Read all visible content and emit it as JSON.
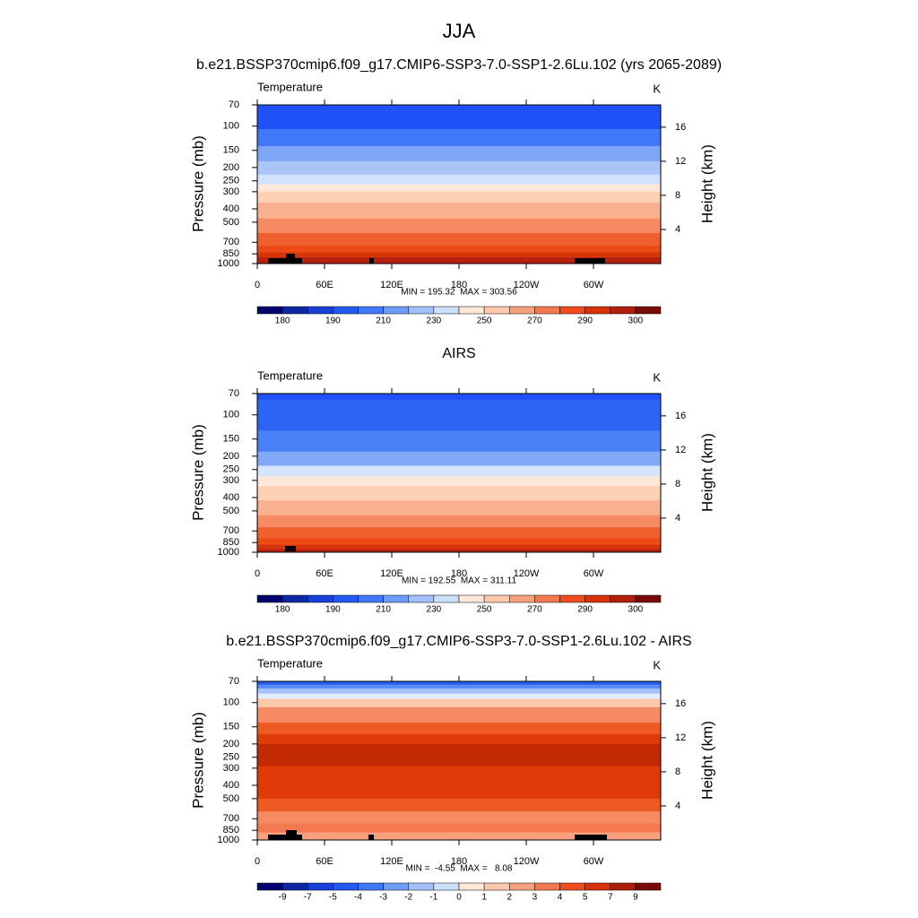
{
  "title": "JJA",
  "panels": [
    {
      "type": "contour",
      "title": "b.e21.BSSP370cmip6.f09_g17.CMIP6-SSP3-7.0-SSP1-2.6Lu.102 (yrs 2065-2089)",
      "left_label": "Temperature",
      "right_label": "K",
      "ylabel": "Pressure (mb)",
      "y2label": "Height (km)",
      "xlim": [
        0,
        360
      ],
      "xticks": [
        0,
        {
          "value": 60,
          "label": "60E"
        },
        {
          "value": 120,
          "label": "120E"
        },
        180,
        {
          "value": 240,
          "label": "120W"
        },
        {
          "value": 300,
          "label": "60W"
        }
      ],
      "ylim": [
        1000,
        70
      ],
      "yticks": [
        70,
        100,
        150,
        200,
        250,
        300,
        400,
        500,
        700,
        850,
        1000
      ],
      "y2ticks": [
        4,
        8,
        12,
        16
      ],
      "stats": "MIN = 195.32  MAX = 303.56",
      "colorbar": {
        "colors": [
          "#04046e",
          "#0c28a4",
          "#1640d6",
          "#2458f2",
          "#3f78f8",
          "#6e9cf8",
          "#a2c0fa",
          "#cce0fc",
          "#fde8d8",
          "#fcc8ac",
          "#f8a07c",
          "#f47850",
          "#f04c1e",
          "#d83208",
          "#b01e0a",
          "#780a0a"
        ],
        "levels": [
          180,
          null,
          190,
          null,
          210,
          null,
          230,
          null,
          250,
          null,
          270,
          null,
          290,
          null,
          300
        ]
      },
      "bands": [
        {
          "p": 70,
          "color": "#1e52f6"
        },
        {
          "p": 105,
          "color": "#3f78f8"
        },
        {
          "p": 140,
          "color": "#7ea6f8"
        },
        {
          "p": 180,
          "color": "#aac6f8"
        },
        {
          "p": 225,
          "color": "#d0e2fc"
        },
        {
          "p": 265,
          "color": "#fde8d8"
        },
        {
          "p": 300,
          "color": "#fcd0b4"
        },
        {
          "p": 360,
          "color": "#f9b08e"
        },
        {
          "p": 470,
          "color": "#f68a62"
        },
        {
          "p": 600,
          "color": "#f0602e"
        },
        {
          "p": 740,
          "color": "#ee4a16"
        },
        {
          "p": 830,
          "color": "#d6360a"
        },
        {
          "p": 900,
          "color": "#b82010"
        }
      ]
    },
    {
      "type": "contour",
      "title": "AIRS",
      "left_label": "Temperature",
      "right_label": "K",
      "ylabel": "Pressure (mb)",
      "y2label": "Height (km)",
      "xlim": [
        0,
        360
      ],
      "xticks": [
        0,
        {
          "value": 60,
          "label": "60E"
        },
        {
          "value": 120,
          "label": "120E"
        },
        180,
        {
          "value": 240,
          "label": "120W"
        },
        {
          "value": 300,
          "label": "60W"
        }
      ],
      "ylim": [
        1000,
        70
      ],
      "yticks": [
        70,
        100,
        150,
        200,
        250,
        300,
        400,
        500,
        700,
        850,
        1000
      ],
      "y2ticks": [
        4,
        8,
        12,
        16
      ],
      "stats": "MIN = 192.55  MAX = 311.11",
      "colorbar": {
        "colors": [
          "#04046e",
          "#0c28a4",
          "#1640d6",
          "#2458f2",
          "#3f78f8",
          "#6e9cf8",
          "#a2c0fa",
          "#cce0fc",
          "#fde8d8",
          "#fcc8ac",
          "#f8a07c",
          "#f47850",
          "#f04c1e",
          "#d83208",
          "#b01e0a",
          "#780a0a"
        ],
        "levels": [
          180,
          null,
          190,
          null,
          210,
          null,
          230,
          null,
          250,
          null,
          270,
          null,
          290,
          null,
          300
        ]
      },
      "bands": [
        {
          "p": 70,
          "color": "#1e52f6"
        },
        {
          "p": 78,
          "color": "#2c64f6"
        },
        {
          "p": 130,
          "color": "#4a80f8"
        },
        {
          "p": 185,
          "color": "#82a8f8"
        },
        {
          "p": 235,
          "color": "#d6e4fc"
        },
        {
          "p": 280,
          "color": "#fde8d8"
        },
        {
          "p": 330,
          "color": "#fcd0b4"
        },
        {
          "p": 420,
          "color": "#f9b08e"
        },
        {
          "p": 540,
          "color": "#f68a62"
        },
        {
          "p": 660,
          "color": "#f0602e"
        },
        {
          "p": 790,
          "color": "#ee4a16"
        },
        {
          "p": 880,
          "color": "#d6360a"
        },
        {
          "p": 950,
          "color": "#b82010"
        }
      ]
    },
    {
      "type": "contour",
      "title": "b.e21.BSSP370cmip6.f09_g17.CMIP6-SSP3-7.0-SSP1-2.6Lu.102 - AIRS",
      "left_label": "Temperature",
      "right_label": "K",
      "ylabel": "Pressure (mb)",
      "y2label": "Height (km)",
      "xlim": [
        0,
        360
      ],
      "xticks": [
        0,
        {
          "value": 60,
          "label": "60E"
        },
        {
          "value": 120,
          "label": "120E"
        },
        180,
        {
          "value": 240,
          "label": "120W"
        },
        {
          "value": 300,
          "label": "60W"
        }
      ],
      "ylim": [
        1000,
        70
      ],
      "yticks": [
        70,
        100,
        150,
        200,
        250,
        300,
        400,
        500,
        700,
        850,
        1000
      ],
      "y2ticks": [
        4,
        8,
        12,
        16
      ],
      "stats": "MIN =  -4.55  MAX =   8.08",
      "colorbar": {
        "colors": [
          "#04046e",
          "#0c28a4",
          "#1640d6",
          "#2458f2",
          "#3f78f8",
          "#6e9cf8",
          "#a2c0fa",
          "#cce0fc",
          "#fde8d8",
          "#fcc8ac",
          "#f8a07c",
          "#f47850",
          "#f04c1e",
          "#d83208",
          "#b01e0a",
          "#780a0a"
        ],
        "levels": [
          -9,
          -7,
          -5,
          -4,
          -3,
          -2,
          -1,
          0,
          1,
          2,
          3,
          4,
          5,
          7,
          9
        ]
      },
      "bands": [
        {
          "p": 70,
          "color": "#2a5cf0"
        },
        {
          "p": 74,
          "color": "#5a8cf8"
        },
        {
          "p": 79,
          "color": "#a6c4fa"
        },
        {
          "p": 86,
          "color": "#e0ecfc"
        },
        {
          "p": 94,
          "color": "#fcc8ac"
        },
        {
          "p": 108,
          "color": "#f68a62"
        },
        {
          "p": 140,
          "color": "#ee5a22"
        },
        {
          "p": 170,
          "color": "#e03a08"
        },
        {
          "p": 200,
          "color": "#c42a06"
        },
        {
          "p": 290,
          "color": "#e03a08"
        },
        {
          "p": 500,
          "color": "#ee5a22"
        },
        {
          "p": 620,
          "color": "#f68a62"
        },
        {
          "p": 760,
          "color": "#f47850"
        },
        {
          "p": 880,
          "color": "#f8a07c"
        }
      ]
    }
  ]
}
